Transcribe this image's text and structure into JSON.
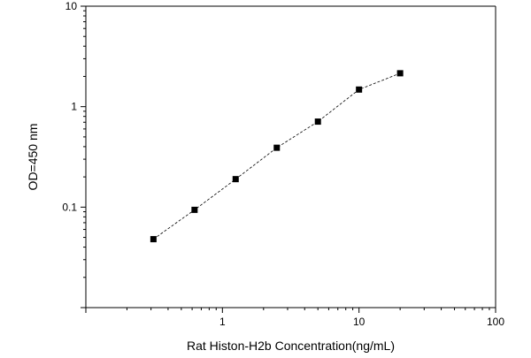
{
  "chart_data": {
    "type": "line",
    "xlabel": "Rat Histon-H2b  Concentration(ng/mL)",
    "ylabel": "OD=450 nm",
    "x_scale": "log",
    "y_scale": "log",
    "xlim": [
      0.1,
      100
    ],
    "ylim": [
      0.01,
      10
    ],
    "x_ticks": [
      {
        "value": 1,
        "label": "1"
      },
      {
        "value": 10,
        "label": "10"
      },
      {
        "value": 100,
        "label": "100"
      }
    ],
    "y_ticks": [
      {
        "value": 0.1,
        "label": "0.1"
      },
      {
        "value": 1,
        "label": "1"
      },
      {
        "value": 10,
        "label": "10"
      }
    ],
    "grid": false,
    "series": [
      {
        "marker": "square",
        "line_style": "dashed",
        "color": "#000000",
        "points": [
          {
            "x": 0.3125,
            "y": 0.048
          },
          {
            "x": 0.625,
            "y": 0.094
          },
          {
            "x": 1.25,
            "y": 0.19
          },
          {
            "x": 2.5,
            "y": 0.39
          },
          {
            "x": 5,
            "y": 0.71
          },
          {
            "x": 10,
            "y": 1.48
          },
          {
            "x": 20,
            "y": 2.15
          }
        ]
      }
    ]
  }
}
